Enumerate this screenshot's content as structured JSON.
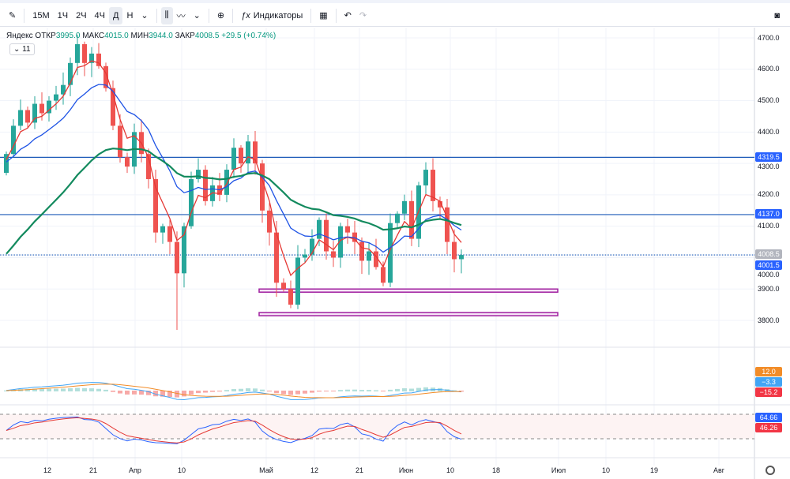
{
  "toolbar": {
    "intervals": [
      "15M",
      "1Ч",
      "2Ч",
      "4Ч",
      "Д",
      "Н"
    ],
    "active_interval": "Д",
    "indicators_label": "Индикаторы"
  },
  "legend": {
    "symbol": "Яндекс",
    "open_label": "ОТКР",
    "open": "3995.0",
    "high_label": "МАКС",
    "high": "4015.0",
    "low_label": "МИН",
    "low": "3944.0",
    "close_label": "ЗАКР",
    "close": "4008.5",
    "change": "+29.5 (+0.74%)",
    "indicator_count": "11"
  },
  "price_axis": {
    "ticks": [
      "4700.0",
      "4600.0",
      "4500.0",
      "4400.0",
      "4300.0",
      "4200.0",
      "4100.0",
      "4000.0",
      "3900.0",
      "3800.0"
    ]
  },
  "price_tags": [
    {
      "value": "4319.5",
      "color": "#2962ff"
    },
    {
      "value": "4137.0",
      "color": "#2962ff"
    },
    {
      "value": "4008.5",
      "color": "#b2b5be"
    },
    {
      "value": "4001.5",
      "color": "#2962ff"
    }
  ],
  "macd_tags": [
    {
      "value": "12.0",
      "color": "#f28c28"
    },
    {
      "value": "−3.3",
      "color": "#42a5f5"
    },
    {
      "value": "−15.2",
      "color": "#f23645"
    }
  ],
  "osc_tags": [
    {
      "value": "64.66",
      "color": "#2962ff"
    },
    {
      "value": "46.26",
      "color": "#f23645"
    }
  ],
  "time_axis": [
    "12",
    "21",
    "Апр",
    "10",
    "Май",
    "12",
    "21",
    "Июн",
    "10",
    "18",
    "Июл",
    "10",
    "19",
    "Авг"
  ],
  "colors": {
    "up": "#26a69a",
    "down": "#ef5350",
    "fast_ma": "#e53935",
    "mid_ma": "#1e53e5",
    "slow_ma": "#138a5e",
    "level": "#1e5bb8",
    "zone": "#a020a0"
  },
  "chart_data": {
    "type": "candlestick",
    "closes": [
      4330,
      4420,
      4470,
      4430,
      4490,
      4460,
      4500,
      4520,
      4550,
      4620,
      4680,
      4620,
      4650,
      4610,
      4540,
      4420,
      4320,
      4290,
      4400,
      4330,
      4250,
      4080,
      4100,
      4050,
      3950,
      4100,
      4250,
      4280,
      4180,
      4230,
      4200,
      4280,
      4350,
      4300,
      4370,
      4300,
      4150,
      4080,
      3920,
      3900,
      3850,
      4000,
      4010,
      4060,
      4120,
      4020,
      4000,
      4100,
      4080,
      4050,
      3990,
      4020,
      3970,
      3920,
      4110,
      4140,
      4180,
      4060,
      4230,
      4280,
      4180,
      4160,
      4050,
      3995,
      4008.5
    ],
    "levels": [
      4319.5,
      4137.0,
      4008.5
    ],
    "zones": [
      [
        3890,
        3900
      ],
      [
        3815,
        3825
      ]
    ],
    "ylim": [
      3700,
      4750
    ]
  }
}
